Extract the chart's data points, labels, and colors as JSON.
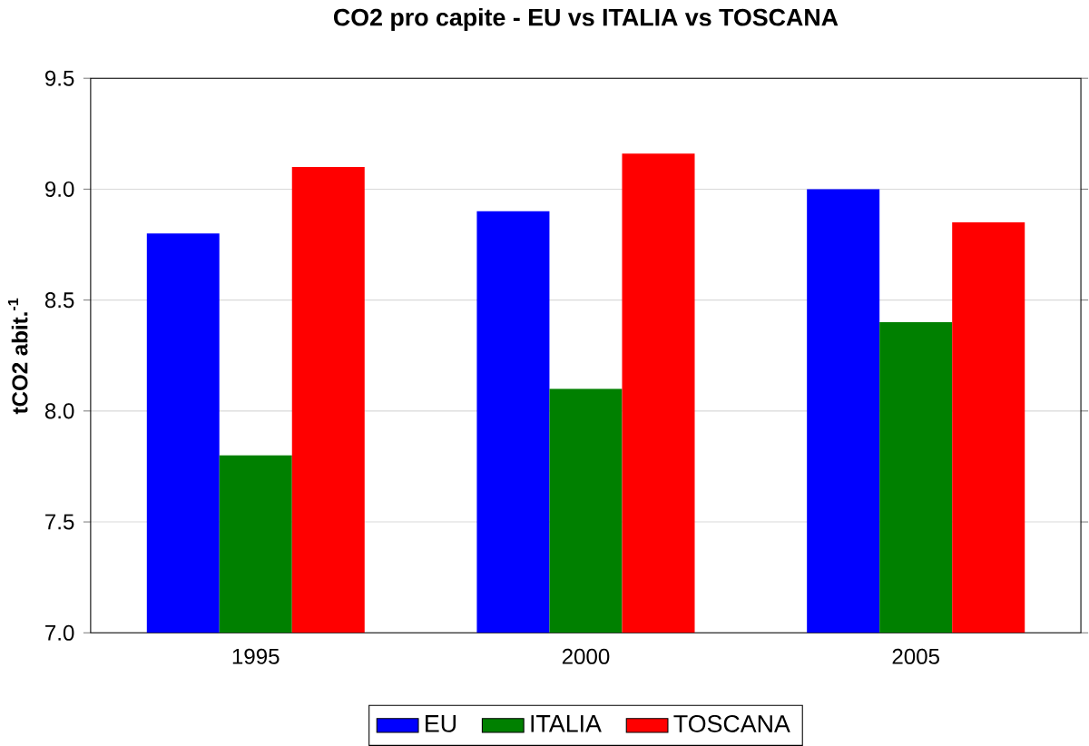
{
  "chart_data": {
    "type": "bar",
    "title": "CO2 pro capite - EU vs ITALIA vs TOSCANA",
    "ylabel": "tCO2 abit.$^{-1}$",
    "categories": [
      "1995",
      "2000",
      "2005"
    ],
    "series": [
      {
        "name": "EU",
        "color": "#0000ff",
        "values": [
          8.8,
          8.9,
          9.0
        ]
      },
      {
        "name": "ITALIA",
        "color": "#008000",
        "values": [
          7.8,
          8.1,
          8.4
        ]
      },
      {
        "name": "TOSCANA",
        "color": "#ff0000",
        "values": [
          9.1,
          9.16,
          8.85
        ]
      }
    ],
    "ylim": [
      7.0,
      9.5
    ],
    "yticks": [
      {
        "value": 7.0,
        "label": "7.0"
      },
      {
        "value": 7.5,
        "label": "7.5"
      },
      {
        "value": 8.0,
        "label": "8.0"
      },
      {
        "value": 8.5,
        "label": "8.5"
      },
      {
        "value": 9.0,
        "label": "9.0"
      },
      {
        "value": 9.5,
        "label": "9.5"
      }
    ],
    "grid": "y",
    "legend": "bottom"
  }
}
